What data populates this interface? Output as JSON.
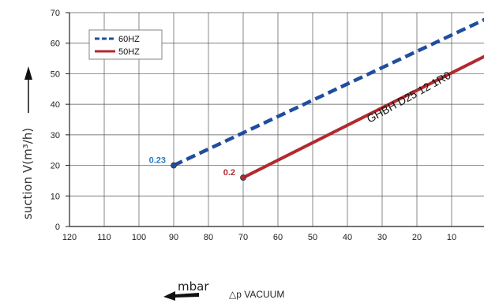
{
  "chart_data": {
    "type": "line",
    "x_reversed": true,
    "x_ticks": [
      120,
      110,
      100,
      90,
      80,
      70,
      60,
      50,
      40,
      30,
      20,
      10
    ],
    "y_ticks": [
      0,
      10,
      20,
      30,
      40,
      50,
      60,
      70
    ],
    "xlim": [
      120,
      0
    ],
    "ylim": [
      0,
      70
    ],
    "ylabel": "suction V(m³/h)",
    "xlabel_unit": "mbar",
    "xlabel_text": "△p  VACUUM",
    "grid": true,
    "legend_position": "top-left",
    "curve_label": "GHBH D25 12 1R0",
    "series": [
      {
        "name": "60HZ",
        "style": "dashed",
        "color": "#1f4e9e",
        "x": [
          90,
          0
        ],
        "y": [
          20,
          68
        ],
        "start_label": "0.23",
        "start_label_color": "#2a7bbf"
      },
      {
        "name": "50HZ",
        "style": "solid",
        "color": "#b22a2e",
        "x": [
          70,
          0
        ],
        "y": [
          16,
          56
        ],
        "start_label": "0.2",
        "start_label_color": "#b22a2e"
      }
    ]
  }
}
